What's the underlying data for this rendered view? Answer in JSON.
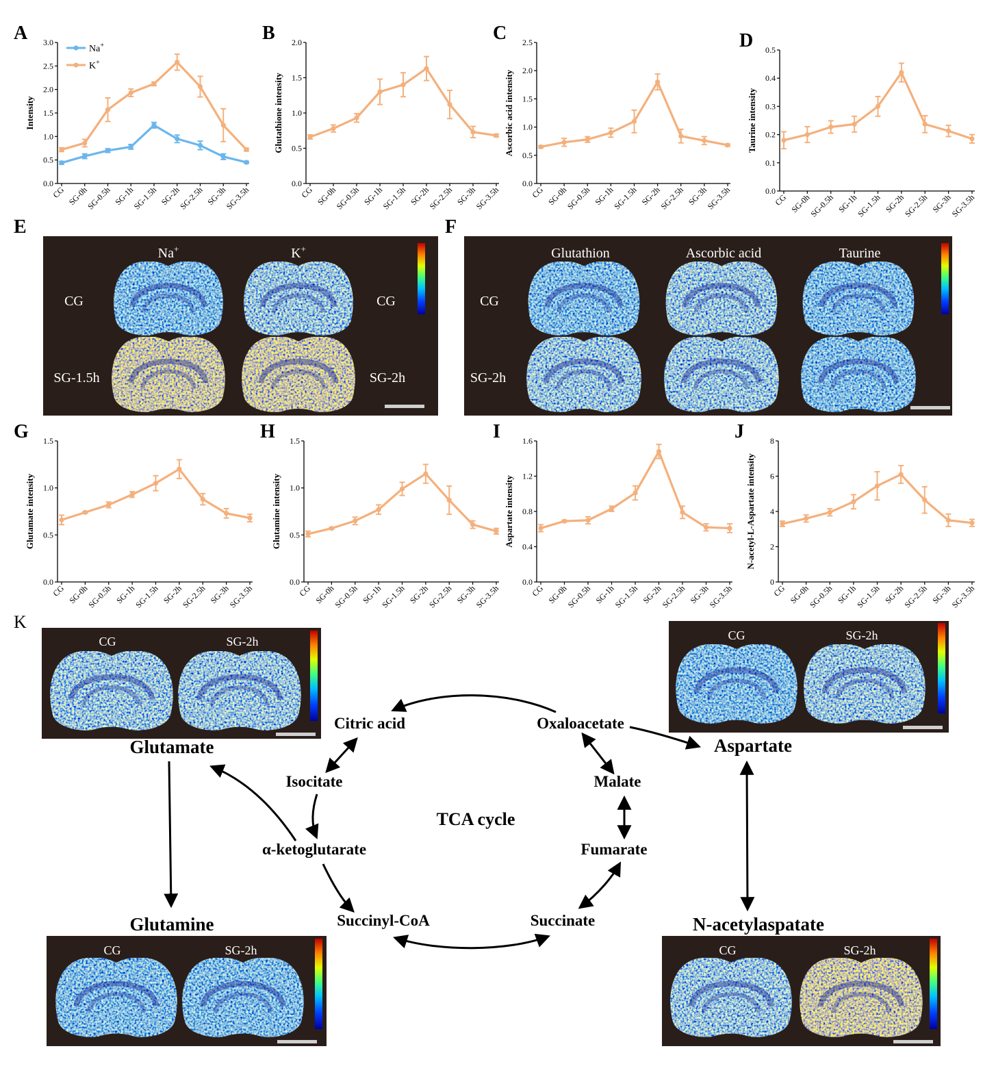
{
  "colors": {
    "orange": "#f4b07c",
    "blue": "#6bb6ec",
    "panel_bg": "#2a1e1a",
    "scale_bar": "#cfcfcf"
  },
  "categories": [
    "CG",
    "SG-0h",
    "SG-0.5h",
    "SG-1h",
    "SG-1.5h",
    "SG-2h",
    "SG-2.5h",
    "SG-3h",
    "SG-3.5h"
  ],
  "chart_data": [
    {
      "panel": "A",
      "type": "line",
      "title": "",
      "xlabel": "",
      "ylabel": "Intensity",
      "ylim": [
        0,
        3.0
      ],
      "yticks": [
        "0.0",
        "0.5",
        "1.0",
        "1.5",
        "2.0",
        "2.5",
        "3.0"
      ],
      "legend_position": "top-left",
      "series": [
        {
          "name": "Na",
          "sup": "+",
          "color": "blue",
          "values": [
            0.44,
            0.58,
            0.7,
            0.78,
            1.24,
            0.95,
            0.81,
            0.57,
            0.45
          ],
          "errors": [
            0.03,
            0.05,
            0.04,
            0.05,
            0.06,
            0.08,
            0.09,
            0.06,
            0.02
          ]
        },
        {
          "name": "K",
          "sup": "+",
          "color": "orange",
          "values": [
            0.72,
            0.86,
            1.57,
            1.93,
            2.12,
            2.58,
            2.06,
            1.24,
            0.72
          ],
          "errors": [
            0.04,
            0.08,
            0.25,
            0.08,
            0.04,
            0.17,
            0.22,
            0.35,
            0.03
          ]
        }
      ]
    },
    {
      "panel": "B",
      "type": "line",
      "title": "",
      "xlabel": "",
      "ylabel": "Glutathione intensity",
      "ylim": [
        0,
        2.0
      ],
      "yticks": [
        "0.0",
        "0.5",
        "1.0",
        "1.5",
        "2.0"
      ],
      "series": [
        {
          "name": "",
          "color": "orange",
          "values": [
            0.66,
            0.78,
            0.93,
            1.3,
            1.4,
            1.63,
            1.12,
            0.73,
            0.68
          ],
          "errors": [
            0.03,
            0.05,
            0.06,
            0.18,
            0.17,
            0.17,
            0.2,
            0.08,
            0.02
          ]
        }
      ]
    },
    {
      "panel": "C",
      "type": "line",
      "title": "",
      "xlabel": "",
      "ylabel": "Ascorbic acid intensity",
      "ylim": [
        0,
        2.5
      ],
      "yticks": [
        "0.0",
        "0.5",
        "1.0",
        "1.5",
        "2.0",
        "2.5"
      ],
      "series": [
        {
          "name": "",
          "color": "orange",
          "values": [
            0.65,
            0.73,
            0.78,
            0.9,
            1.1,
            1.8,
            0.84,
            0.76,
            0.68
          ],
          "errors": [
            0.02,
            0.07,
            0.05,
            0.08,
            0.2,
            0.14,
            0.12,
            0.07,
            0.02
          ]
        }
      ]
    },
    {
      "panel": "D",
      "type": "line",
      "title": "",
      "xlabel": "",
      "ylabel": "Taurine intensity",
      "ylim": [
        0,
        0.5
      ],
      "yticks": [
        "0.0",
        "0.1",
        "0.2",
        "0.3",
        "0.4",
        "0.5"
      ],
      "series": [
        {
          "name": "",
          "color": "orange",
          "values": [
            0.18,
            0.2,
            0.227,
            0.237,
            0.3,
            0.42,
            0.237,
            0.213,
            0.185
          ],
          "errors": [
            0.03,
            0.028,
            0.022,
            0.028,
            0.035,
            0.033,
            0.03,
            0.02,
            0.015
          ]
        }
      ]
    },
    {
      "panel": "G",
      "type": "line",
      "title": "",
      "xlabel": "",
      "ylabel": "Glutamate intensity",
      "ylim": [
        0,
        1.5
      ],
      "yticks": [
        "0.0",
        "0.5",
        "1.0",
        "1.5"
      ],
      "series": [
        {
          "name": "",
          "color": "orange",
          "values": [
            0.66,
            0.74,
            0.82,
            0.93,
            1.05,
            1.2,
            0.88,
            0.73,
            0.68
          ],
          "errors": [
            0.05,
            0.01,
            0.03,
            0.03,
            0.08,
            0.1,
            0.06,
            0.05,
            0.04
          ]
        }
      ]
    },
    {
      "panel": "H",
      "type": "line",
      "title": "",
      "xlabel": "",
      "ylabel": "Glutamine intensity",
      "ylim": [
        0,
        1.5
      ],
      "yticks": [
        "0.0",
        "0.5",
        "1.0",
        "1.5"
      ],
      "series": [
        {
          "name": "",
          "color": "orange",
          "values": [
            0.51,
            0.57,
            0.65,
            0.77,
            0.99,
            1.15,
            0.87,
            0.61,
            0.54
          ],
          "errors": [
            0.03,
            0.01,
            0.04,
            0.05,
            0.07,
            0.1,
            0.15,
            0.04,
            0.03
          ]
        }
      ]
    },
    {
      "panel": "I",
      "type": "line",
      "title": "",
      "xlabel": "",
      "ylabel": "Aspartate intensity",
      "ylim": [
        0,
        1.6
      ],
      "yticks": [
        "0.0",
        "0.4",
        "0.8",
        "1.2",
        "1.6"
      ],
      "series": [
        {
          "name": "",
          "color": "orange",
          "values": [
            0.61,
            0.69,
            0.7,
            0.83,
            1.01,
            1.48,
            0.79,
            0.62,
            0.61
          ],
          "errors": [
            0.04,
            0.01,
            0.04,
            0.03,
            0.08,
            0.08,
            0.07,
            0.04,
            0.05
          ]
        }
      ]
    },
    {
      "panel": "J",
      "type": "line",
      "title": "",
      "xlabel": "",
      "ylabel": "N-acetyl-L-Aspartate intensity",
      "ylim": [
        0,
        8
      ],
      "yticks": [
        "0",
        "2",
        "4",
        "6",
        "8"
      ],
      "series": [
        {
          "name": "",
          "color": "orange",
          "values": [
            3.3,
            3.6,
            3.95,
            4.55,
            5.45,
            6.1,
            4.65,
            3.5,
            3.35
          ],
          "errors": [
            0.15,
            0.2,
            0.2,
            0.4,
            0.8,
            0.5,
            0.75,
            0.35,
            0.2
          ]
        }
      ]
    }
  ],
  "panel_letters": {
    "A": "A",
    "B": "B",
    "C": "C",
    "D": "D",
    "E": "E",
    "F": "F",
    "G": "G",
    "H": "H",
    "I": "I",
    "J": "J",
    "K": "K"
  },
  "imaging": {
    "E": {
      "col1": "Na",
      "col1_sup": "+",
      "col2": "K",
      "col2_sup": "+",
      "row1_left": "CG",
      "row1_right": "CG",
      "row2_left": "SG-1.5h",
      "row2_right": "SG-2h"
    },
    "F": {
      "col1": "Glutathion",
      "col2": "Ascorbic acid",
      "col3": "Taurine",
      "row1": "CG",
      "row2": "SG-2h"
    },
    "K1": {
      "left": "CG",
      "right": "SG-2h"
    },
    "K2": {
      "left": "CG",
      "right": "SG-2h"
    },
    "K3": {
      "left": "CG",
      "right": "SG-2h"
    },
    "K4": {
      "left": "CG",
      "right": "SG-2h"
    }
  },
  "pathway": {
    "center": "TCA cycle",
    "citric": "Citric acid",
    "oxalo": "Oxaloacetate",
    "isocitrate": "Isocitate",
    "malate": "Malate",
    "akg": "α-ketoglutarate",
    "fumarate": "Fumarate",
    "succoa": "Succinyl-CoA",
    "succinate": "Succinate",
    "glutamate": "Glutamate",
    "glutamine": "Glutamine",
    "aspartate": "Aspartate",
    "naa": "N-acetylaspatate"
  }
}
